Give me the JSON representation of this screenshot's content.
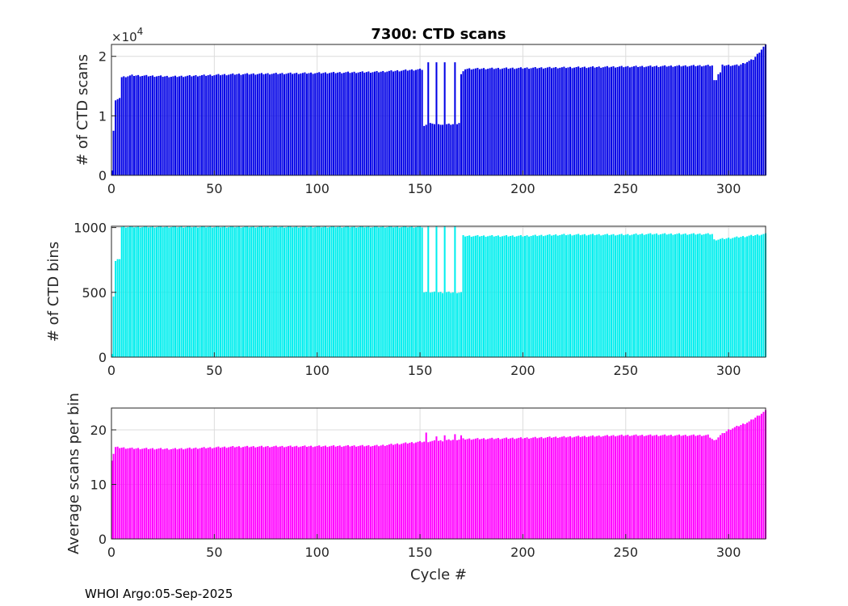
{
  "figure": {
    "footer": "WHOI Argo:05-Sep-2025"
  },
  "chart_data": [
    {
      "type": "bar",
      "title": "7300: CTD scans",
      "ylabel": "# of CTD scans",
      "xlabel": "",
      "xlim": [
        0,
        318
      ],
      "ylim": [
        0,
        2.2
      ],
      "exponent_label": "×10",
      "exponent_power": "4",
      "xticks": [
        0,
        50,
        100,
        150,
        200,
        250,
        300
      ],
      "xtick_labels": [
        "0",
        "50",
        "100",
        "150",
        "200",
        "250",
        "300"
      ],
      "yticks": [
        0,
        1,
        2
      ],
      "ytick_labels": [
        "0",
        "1",
        "2"
      ],
      "color": "#0000e6",
      "grid": true,
      "keypoints": [
        [
          1,
          0.75
        ],
        [
          2,
          1.26
        ],
        [
          4,
          1.3
        ],
        [
          5,
          1.65
        ],
        [
          10,
          1.68
        ],
        [
          30,
          1.66
        ],
        [
          60,
          1.7
        ],
        [
          100,
          1.72
        ],
        [
          130,
          1.74
        ],
        [
          150,
          1.78
        ],
        [
          300,
          1.85
        ],
        [
          305,
          1.85
        ],
        [
          312,
          1.95
        ],
        [
          318,
          2.2
        ]
      ],
      "overrides": {
        "0": 0.08,
        "1": 0.75,
        "2": 1.26,
        "3": 1.28,
        "4": 1.3,
        "152": 0.83,
        "153": 0.85,
        "154": 1.9,
        "155": 0.88,
        "156": 0.87,
        "157": 0.86,
        "158": 1.9,
        "159": 0.86,
        "160": 0.85,
        "161": 0.85,
        "162": 1.9,
        "163": 0.86,
        "164": 0.87,
        "165": 0.85,
        "166": 0.86,
        "167": 1.9,
        "168": 0.86,
        "169": 0.88,
        "170": 1.7,
        "171": 1.75,
        "293": 1.6,
        "294": 1.6,
        "295": 1.7,
        "296": 1.73
      }
    },
    {
      "type": "bar",
      "title": "",
      "ylabel": "# of CTD bins",
      "xlabel": "",
      "xlim": [
        0,
        318
      ],
      "ylim": [
        0,
        1010
      ],
      "xticks": [
        0,
        50,
        100,
        150,
        200,
        250,
        300
      ],
      "xtick_labels": [
        "0",
        "50",
        "100",
        "150",
        "200",
        "250",
        "300"
      ],
      "yticks": [
        0,
        500,
        1000
      ],
      "ytick_labels": [
        "0",
        "500",
        "1000"
      ],
      "color": "#00eeee",
      "grid": true,
      "keypoints": [
        [
          0,
          30
        ],
        [
          1,
          470
        ],
        [
          2,
          740
        ],
        [
          4,
          760
        ],
        [
          5,
          1005
        ],
        [
          151,
          1005
        ],
        [
          152,
          500
        ],
        [
          170,
          500
        ],
        [
          171,
          935
        ],
        [
          200,
          935
        ],
        [
          220,
          945
        ],
        [
          250,
          945
        ],
        [
          260,
          950
        ],
        [
          292,
          950
        ],
        [
          293,
          905
        ],
        [
          318,
          950
        ]
      ],
      "overrides": {
        "154": 1010,
        "158": 1010,
        "162": 1010,
        "167": 1010
      }
    },
    {
      "type": "bar",
      "title": "",
      "ylabel": "Average scans per bin",
      "xlabel": "Cycle #",
      "xlim": [
        0,
        318
      ],
      "ylim": [
        0,
        24
      ],
      "xticks": [
        0,
        50,
        100,
        150,
        200,
        250,
        300
      ],
      "xtick_labels": [
        "0",
        "50",
        "100",
        "150",
        "200",
        "250",
        "300"
      ],
      "yticks": [
        0,
        10,
        20
      ],
      "ytick_labels": [
        "0",
        "10",
        "20"
      ],
      "color": "#ff00ff",
      "grid": true,
      "keypoints": [
        [
          0,
          14.5
        ],
        [
          2,
          16.8
        ],
        [
          10,
          16.6
        ],
        [
          30,
          16.5
        ],
        [
          60,
          16.9
        ],
        [
          100,
          17.0
        ],
        [
          130,
          17.1
        ],
        [
          150,
          17.8
        ],
        [
          160,
          18.0
        ],
        [
          170,
          18.3
        ],
        [
          200,
          18.5
        ],
        [
          250,
          19.0
        ],
        [
          290,
          19.0
        ],
        [
          293,
          18.0
        ],
        [
          296,
          19.0
        ],
        [
          300,
          20
        ],
        [
          310,
          21.5
        ],
        [
          318,
          23.5
        ]
      ],
      "overrides": {
        "153": 19.5,
        "158": 18.8,
        "162": 19.0,
        "167": 19.2,
        "170": 19.0
      }
    }
  ]
}
